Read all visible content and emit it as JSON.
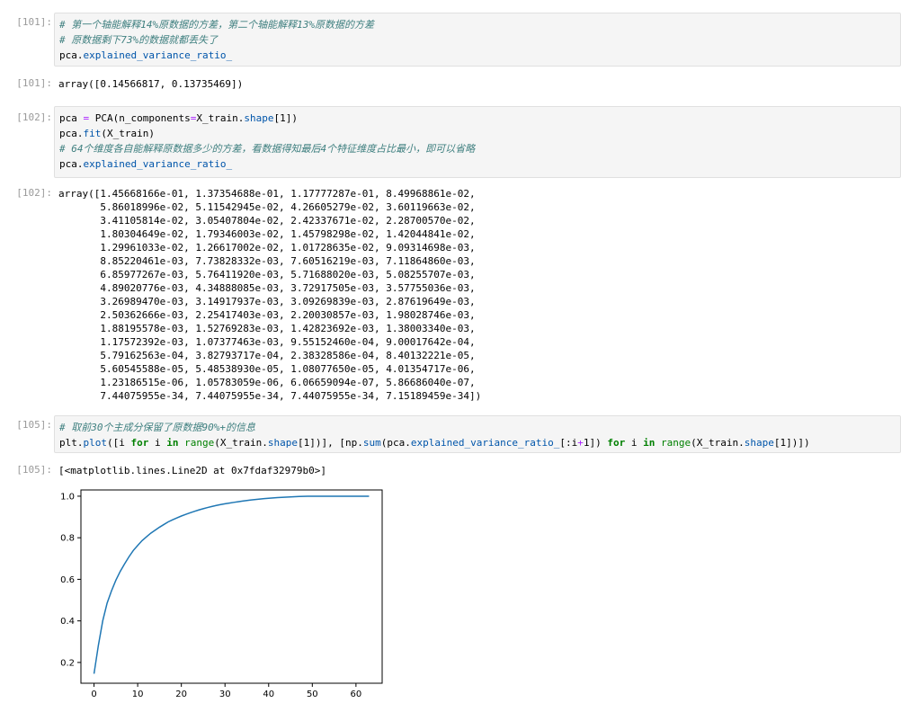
{
  "cells": [
    {
      "prompt_in": "[101]:",
      "prompt_out": "[101]:",
      "code": {
        "l1": "# 第一个轴能解释14%原数据的方差，第二个轴能解释13%原数据的方差",
        "l2": "# 原数据剩下73%的数据就都丢失了",
        "l3a": "pca.",
        "l3b": "explained_variance_ratio_"
      },
      "output": "array([0.14566817, 0.13735469])"
    },
    {
      "prompt_in": "[102]:",
      "prompt_out": "[102]:",
      "code": {
        "l1a": "pca ",
        "l1b": "=",
        "l1c": " PCA(n_components",
        "l1d": "=",
        "l1e": "X_train.",
        "l1f": "shape",
        "l1g": "[1])",
        "l2a": "pca.",
        "l2b": "fit",
        "l2c": "(X_train)",
        "l3": "# 64个维度各自能解释原数据多少的方差，看数据得知最后4个特征维度占比最小，即可以省略",
        "l4a": "pca.",
        "l4b": "explained_variance_ratio_"
      },
      "output_lines": [
        "array([1.45668166e-01, 1.37354688e-01, 1.17777287e-01, 8.49968861e-02,",
        "       5.86018996e-02, 5.11542945e-02, 4.26605279e-02, 3.60119663e-02,",
        "       3.41105814e-02, 3.05407804e-02, 2.42337671e-02, 2.28700570e-02,",
        "       1.80304649e-02, 1.79346003e-02, 1.45798298e-02, 1.42044841e-02,",
        "       1.29961033e-02, 1.26617002e-02, 1.01728635e-02, 9.09314698e-03,",
        "       8.85220461e-03, 7.73828332e-03, 7.60516219e-03, 7.11864860e-03,",
        "       6.85977267e-03, 5.76411920e-03, 5.71688020e-03, 5.08255707e-03,",
        "       4.89020776e-03, 4.34888085e-03, 3.72917505e-03, 3.57755036e-03,",
        "       3.26989470e-03, 3.14917937e-03, 3.09269839e-03, 2.87619649e-03,",
        "       2.50362666e-03, 2.25417403e-03, 2.20030857e-03, 1.98028746e-03,",
        "       1.88195578e-03, 1.52769283e-03, 1.42823692e-03, 1.38003340e-03,",
        "       1.17572392e-03, 1.07377463e-03, 9.55152460e-04, 9.00017642e-04,",
        "       5.79162563e-04, 3.82793717e-04, 2.38328586e-04, 8.40132221e-05,",
        "       5.60545588e-05, 5.48538930e-05, 1.08077650e-05, 4.01354717e-06,",
        "       1.23186515e-06, 1.05783059e-06, 6.06659094e-07, 5.86686040e-07,",
        "       7.44075955e-34, 7.44075955e-34, 7.44075955e-34, 7.15189459e-34])"
      ]
    },
    {
      "prompt_in": "[105]:",
      "prompt_out": "[105]:",
      "code": {
        "l1": "# 取前30个主成分保留了原数据90%+的信息",
        "l2a": "plt.",
        "l2b": "plot",
        "l2c": "([i ",
        "l2d": "for",
        "l2e": " i ",
        "l2f": "in",
        "l2g": " ",
        "l2h": "range",
        "l2i": "(X_train.",
        "l2j": "shape",
        "l2k": "[1])], [np.",
        "l2l": "sum",
        "l2m": "(pca.",
        "l2n": "explained_variance_ratio_",
        "l2o": "[:i",
        "l2p": "+",
        "l2q": "1]) ",
        "l2r": "for",
        "l2s": " i ",
        "l2t": "in",
        "l2u": " ",
        "l2v": "range",
        "l2w": "(X_train.",
        "l2x": "shape",
        "l2y": "[1])])"
      },
      "output": "[<matplotlib.lines.Line2D at 0x7fdaf32979b0>]"
    }
  ],
  "colors": {
    "line": "#1f77b4",
    "comment": "#408080",
    "keyword": "#008000",
    "prompt": "#9a9a9a"
  },
  "chart_data": {
    "type": "line",
    "title": "",
    "xlabel": "",
    "ylabel": "",
    "xlim": [
      -3,
      66
    ],
    "ylim": [
      0.1,
      1.03
    ],
    "xticks": [
      0,
      10,
      20,
      30,
      40,
      50,
      60
    ],
    "yticks": [
      0.2,
      0.4,
      0.6,
      0.8,
      1.0
    ],
    "ytick_labels": [
      "0.2",
      "0.4",
      "0.6",
      "0.8",
      "1.0"
    ],
    "grid": false,
    "ratios": [
      0.145668166,
      0.137354688,
      0.117777287,
      0.0849968861,
      0.0586018996,
      0.0511542945,
      0.0426605279,
      0.0360119663,
      0.0341105814,
      0.0305407804,
      0.0242337671,
      0.022870057,
      0.0180304649,
      0.0179346003,
      0.0145798298,
      0.0142044841,
      0.0129961033,
      0.0126617002,
      0.0101728635,
      0.00909314698,
      0.00885220461,
      0.00773828332,
      0.00760516219,
      0.0071186486,
      0.00685977267,
      0.0057641192,
      0.0057168802,
      0.00508255707,
      0.00489020776,
      0.00434888085,
      0.00372917505,
      0.00357755036,
      0.0032698947,
      0.00314917937,
      0.00309269839,
      0.00287619649,
      0.00250362666,
      0.00225417403,
      0.00220030857,
      0.00198028746,
      0.00188195578,
      0.00152769283,
      0.00142823692,
      0.0013800334,
      0.00117572392,
      0.00107377463,
      0.00095515246,
      0.000900017642,
      0.000579162563,
      0.000382793717,
      0.000238328586,
      8.40132221e-05,
      5.60545588e-05,
      5.4853893e-05,
      1.0807765e-05,
      4.01354717e-06,
      1.23186515e-06,
      1.05783059e-06,
      6.06659094e-07,
      5.8668604e-07,
      0,
      0,
      0,
      0
    ]
  }
}
